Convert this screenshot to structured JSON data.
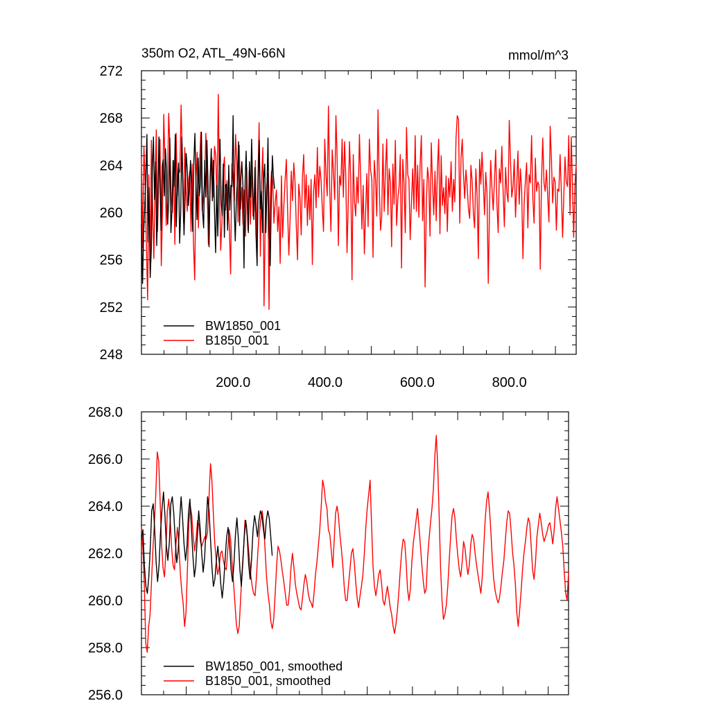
{
  "chart_data": [
    {
      "type": "line",
      "title": "350m O2, ATL_49N-66N",
      "units_label": "mmol/m^3",
      "xlim": [
        1,
        945
      ],
      "ylim": [
        248,
        272
      ],
      "xticks": [
        200,
        400,
        600,
        800
      ],
      "xtick_labels": [
        "200.0",
        "400.0",
        "600.0",
        "800.0"
      ],
      "yticks": [
        248,
        252,
        256,
        260,
        264,
        268,
        272
      ],
      "ytick_labels": [
        "248",
        "252",
        "256",
        "260",
        "264",
        "268",
        "272"
      ],
      "grid": false,
      "legend_position": "bottom-left",
      "series": [
        {
          "name": "BW1850_001",
          "color": "#000000",
          "x_start": 1,
          "x_end": 290,
          "values": [
            259.0,
            254.0,
            258.1,
            260.4,
            263.0,
            266.6,
            257.5,
            262.1,
            254.5,
            256.8,
            263.6,
            266.4,
            261.1,
            264.3,
            257.2,
            260.9,
            266.4,
            262.6,
            258.5,
            263.9,
            264.5,
            261.4,
            265.4,
            263.3,
            259.0,
            261.0,
            266.3,
            258.3,
            260.3,
            264.4,
            262.2,
            266.6,
            258.8,
            262.4,
            264.2,
            257.4,
            260.0,
            266.4,
            262.0,
            258.1,
            261.0,
            265.0,
            263.6,
            260.6,
            262.2,
            264.4,
            261.9,
            258.4,
            264.2,
            266.7,
            262.4,
            259.4,
            264.6,
            261.4,
            262.4,
            266.8,
            260.1,
            258.7,
            264.4,
            261.3,
            266.1,
            262.5,
            257.1,
            263.0,
            265.4,
            261.0,
            264.4,
            260.0,
            256.6,
            262.3,
            258.0,
            262.8,
            266.2,
            261.1,
            259.7,
            264.1,
            257.9,
            262.3,
            262.4,
            258.5,
            264.0,
            260.2,
            262.3,
            262.2,
            268.2,
            260.6,
            257.6,
            261.1,
            262.8,
            266.0,
            258.9,
            262.7,
            264.3,
            262.3,
            255.3,
            262.6,
            265.2,
            260.9,
            258.3,
            264.3,
            261.3,
            266.2,
            262.2,
            259.4,
            263.8,
            258.2,
            255.5,
            262.9,
            266.1,
            260.3,
            261.8,
            258.3,
            262.8,
            264.1,
            258.3,
            261.7,
            266.3,
            258.6,
            255.5,
            260.7,
            264.8,
            263.0,
            262.0
          ]
        },
        {
          "name": "B1850_001",
          "color": "#ff0000",
          "x_start": 1,
          "x_end": 945,
          "values": [
            264.7,
            257.0,
            265.6,
            262.3,
            257.4,
            252.6,
            263.2,
            255.2,
            266.1,
            260.4,
            256.1,
            262.0,
            267.0,
            258.4,
            263.2,
            266.2,
            255.5,
            260.1,
            268.3,
            264.2,
            258.9,
            262.0,
            268.4,
            265.6,
            261.3,
            260.0,
            264.4,
            257.3,
            266.7,
            261.4,
            263.7,
            263.4,
            269.1,
            264.9,
            259.1,
            265.5,
            262.1,
            260.1,
            262.7,
            263.5,
            258.4,
            264.1,
            257.5,
            254.3,
            262.8,
            265.1,
            258.7,
            264.4,
            266.8,
            260.2,
            261.2,
            262.7,
            266.7,
            262.5,
            257.3,
            260.6,
            263.5,
            264.6,
            261.3,
            265.6,
            264.8,
            261.0,
            270.0,
            262.3,
            256.8,
            259.2,
            263.5,
            264.7,
            260.2,
            262.7,
            260.6,
            258.7,
            254.8,
            264.1,
            262.9,
            261.0,
            266.6,
            264.3,
            259.2,
            265.7,
            260.3,
            262.1,
            259.0,
            261.9,
            258.0,
            263.8,
            258.5,
            263.5,
            259.0,
            264.0,
            259.7,
            260.1,
            264.4,
            257.5,
            262.6,
            267.6,
            256.3,
            262.5,
            265.5,
            252.1,
            259.5,
            262.1,
            263.3,
            251.8,
            261.6,
            263.5,
            262.5,
            259.1,
            260.9,
            261.9,
            258.4,
            260.5,
            255.7,
            263.1,
            257.9,
            260.6,
            262.7,
            264.5,
            260.2,
            256.4,
            259.5,
            263.5,
            261.0,
            264.2,
            262.6,
            258.9,
            256.0,
            262.4,
            261.3,
            258.1,
            263.0,
            264.9,
            260.4,
            263.2,
            258.9,
            262.3,
            259.4,
            262.8,
            255.6,
            261.8,
            263.2,
            260.4,
            265.5,
            261.3,
            263.9,
            262.8,
            260.4,
            258.4,
            266.2,
            263.2,
            261.4,
            269.0,
            262.0,
            258.4,
            265.3,
            263.4,
            261.1,
            268.2,
            264.7,
            257.2,
            263.1,
            262.3,
            266.2,
            261.3,
            266.0,
            263.1,
            256.6,
            260.9,
            266.0,
            262.7,
            254.3,
            264.9,
            261.0,
            259.7,
            263.0,
            260.8,
            266.6,
            262.9,
            258.6,
            262.3,
            256.5,
            260.1,
            263.3,
            258.8,
            266.2,
            263.6,
            262.8,
            256.2,
            264.4,
            262.8,
            259.7,
            268.7,
            262.3,
            258.5,
            259.6,
            265.8,
            260.1,
            263.5,
            266.2,
            259.8,
            263.7,
            262.5,
            257.1,
            264.1,
            260.7,
            266.1,
            258.9,
            261.2,
            262.2,
            264.9,
            255.3,
            264.5,
            262.5,
            258.3,
            267.2,
            263.2,
            262.8,
            257.7,
            260.7,
            263.7,
            260.3,
            266.5,
            260.1,
            264.0,
            259.6,
            264.0,
            266.5,
            259.3,
            262.8,
            253.7,
            260.6,
            263.8,
            262.8,
            258.0,
            265.9,
            262.5,
            259.8,
            263.5,
            259.3,
            263.7,
            266.2,
            258.2,
            264.8,
            260.6,
            262.1,
            259.9,
            263.1,
            258.4,
            262.9,
            261.3,
            264.3,
            260.1,
            262.8,
            260.9,
            266.3,
            268.2,
            267.9,
            259.1,
            264.6,
            266.2,
            263.3,
            261.2,
            263.6,
            262.2,
            260.3,
            259.5,
            264.0,
            262.7,
            260.0,
            258.7,
            263.7,
            261.4,
            256.1,
            264.5,
            262.4,
            265.1,
            262.7,
            259.8,
            263.4,
            261.6,
            254.0,
            260.3,
            264.4,
            262.1,
            260.2,
            262.7,
            265.3,
            260.7,
            258.3,
            263.7,
            262.5,
            265.6,
            261.8,
            258.8,
            263.8,
            261.7,
            260.9,
            267.8,
            264.4,
            261.3,
            262.2,
            264.5,
            259.6,
            262.4,
            265.2,
            260.7,
            263.7,
            261.8,
            256.1,
            260.8,
            262.7,
            264.2,
            258.7,
            263.2,
            262.5,
            266.5,
            261.2,
            259.1,
            264.6,
            261.8,
            262.6,
            262.3,
            255.2,
            262.7,
            266.3,
            262.5,
            261.8,
            263.6,
            261.4,
            259.2,
            267.3,
            264.5,
            260.8,
            263.0,
            262.6,
            258.5,
            262.0,
            261.8,
            264.9,
            261.7,
            257.9,
            261.3,
            264.7,
            262.6,
            262.2,
            266.5,
            259.8,
            266.4,
            262.5,
            257.9,
            262.3,
            264.1
          ]
        }
      ]
    },
    {
      "type": "line",
      "xlim": [
        1,
        945
      ],
      "ylim": [
        256,
        268
      ],
      "yticks": [
        256,
        258,
        260,
        262,
        264,
        266,
        268
      ],
      "ytick_labels": [
        "256.0",
        "258.0",
        "260.0",
        "262.0",
        "264.0",
        "266.0",
        "268.0"
      ],
      "xticks": [
        200,
        400,
        600,
        800
      ],
      "grid": false,
      "legend_position": "bottom-left",
      "series": [
        {
          "name": "BW1850_001, smoothed",
          "color": "#000000",
          "x_start": 1,
          "x_end": 290,
          "values": [
            262.6,
            263.0,
            261.5,
            260.6,
            260.3,
            261.0,
            262.2,
            263.8,
            264.1,
            263.0,
            261.6,
            260.8,
            261.5,
            262.9,
            263.9,
            264.6,
            263.6,
            262.3,
            261.7,
            262.5,
            264.1,
            264.4,
            263.7,
            262.6,
            261.6,
            262.1,
            263.4,
            264.4,
            263.5,
            262.4,
            261.7,
            262.3,
            263.7,
            264.3,
            263.1,
            261.9,
            261.0,
            261.5,
            262.7,
            263.8,
            263.0,
            262.0,
            261.2,
            261.8,
            263.1,
            264.4,
            263.8,
            262.6,
            261.4,
            260.6,
            260.9,
            261.7,
            262.3,
            261.6,
            260.7,
            260.1,
            260.8,
            261.8,
            262.7,
            263.1,
            262.4,
            261.3,
            260.8,
            261.6,
            262.8,
            263.5,
            262.6,
            261.3,
            260.6,
            261.6,
            262.7,
            263.4,
            262.7,
            261.5,
            260.9,
            261.8,
            263.0,
            263.6,
            263.2,
            262.7,
            263.4,
            263.8,
            263.6,
            263.0,
            262.6,
            263.4,
            263.8,
            263.5,
            262.7,
            261.9
          ]
        },
        {
          "name": "B1850_001, smoothed",
          "color": "#ff0000",
          "x_start": 1,
          "x_end": 945,
          "values": [
            263.1,
            262.2,
            260.7,
            258.2,
            257.8,
            258.9,
            259.4,
            260.8,
            262.2,
            263.3,
            264.5,
            266.3,
            265.9,
            264.2,
            262.4,
            261.4,
            261.0,
            262.1,
            263.8,
            264.3,
            263.4,
            262.2,
            261.5,
            261.3,
            262.4,
            263.1,
            262.4,
            261.2,
            260.4,
            259.9,
            258.9,
            259.5,
            261.4,
            263.3,
            264.0,
            263.6,
            262.7,
            262.1,
            262.6,
            263.4,
            263.2,
            262.5,
            262.3,
            262.5,
            262.7,
            262.6,
            262.9,
            264.4,
            265.8,
            265.1,
            263.7,
            262.4,
            261.7,
            261.1,
            261.4,
            262.0,
            262.1,
            261.7,
            261.4,
            261.3,
            262.1,
            263.0,
            262.6,
            261.6,
            260.8,
            259.9,
            259.0,
            258.6,
            258.9,
            260.1,
            261.3,
            262.2,
            263.4,
            263.2,
            262.5,
            261.8,
            261.1,
            260.6,
            260.3,
            260.2,
            261.0,
            262.1,
            262.9,
            263.4,
            263.8,
            263.2,
            262.1,
            261.0,
            260.3,
            259.8,
            259.1,
            258.8,
            259.2,
            260.3,
            261.5,
            262.3,
            262.1,
            261.7,
            261.2,
            260.8,
            260.3,
            259.8,
            259.8,
            260.4,
            261.4,
            262.0,
            261.4,
            260.7,
            260.3,
            260.0,
            259.7,
            259.6,
            260.1,
            260.7,
            261.1,
            260.8,
            260.3,
            260.0,
            259.9,
            259.7,
            260.3,
            261.1,
            261.6,
            262.3,
            263.0,
            264.0,
            265.1,
            264.8,
            264.2,
            263.9,
            263.0,
            262.8,
            262.1,
            261.4,
            262.5,
            263.7,
            264.0,
            263.6,
            262.8,
            262.2,
            261.5,
            260.6,
            260.0,
            260.0,
            260.7,
            261.3,
            262.0,
            262.2,
            261.6,
            260.8,
            260.1,
            259.7,
            260.2,
            260.6,
            261.1,
            262.0,
            263.1,
            263.9,
            264.5,
            265.1,
            263.2,
            261.5,
            260.6,
            260.2,
            260.6,
            261.1,
            261.3,
            260.7,
            260.0,
            259.8,
            260.2,
            260.6,
            260.2,
            259.7,
            259.4,
            258.9,
            258.6,
            259.0,
            259.6,
            260.4,
            261.3,
            262.1,
            262.6,
            262.5,
            261.7,
            260.5,
            260.0,
            260.5,
            261.6,
            262.4,
            262.9,
            263.4,
            263.9,
            263.1,
            262.3,
            261.5,
            260.8,
            260.3,
            260.5,
            261.8,
            262.6,
            263.3,
            263.9,
            264.7,
            266.1,
            267.0,
            265.7,
            263.7,
            261.4,
            260.0,
            259.2,
            259.4,
            259.8,
            260.6,
            261.7,
            262.7,
            263.6,
            263.9,
            263.5,
            262.6,
            261.9,
            261.3,
            261.0,
            261.6,
            262.5,
            262.2,
            261.6,
            261.1,
            261.5,
            262.4,
            262.8,
            262.6,
            262.0,
            261.5,
            261.1,
            260.7,
            260.3,
            261.0,
            262.2,
            263.4,
            264.2,
            264.6,
            263.9,
            262.9,
            261.7,
            260.9,
            260.4,
            260.1,
            259.9,
            260.1,
            260.6,
            261.2,
            261.7,
            262.5,
            263.3,
            263.8,
            263.7,
            263.0,
            262.1,
            261.5,
            260.7,
            259.5,
            258.9,
            259.6,
            260.4,
            261.3,
            262.0,
            262.5,
            263.1,
            263.5,
            263.3,
            262.3,
            261.3,
            260.9,
            261.6,
            262.7,
            263.2,
            263.7,
            263.3,
            262.8,
            262.5,
            262.7,
            262.9,
            263.2,
            263.3,
            262.9,
            262.4,
            263.0,
            263.9,
            264.4,
            263.9,
            263.4,
            262.9,
            262.3,
            261.2,
            260.3,
            260.0,
            261.2
          ]
        }
      ]
    }
  ]
}
